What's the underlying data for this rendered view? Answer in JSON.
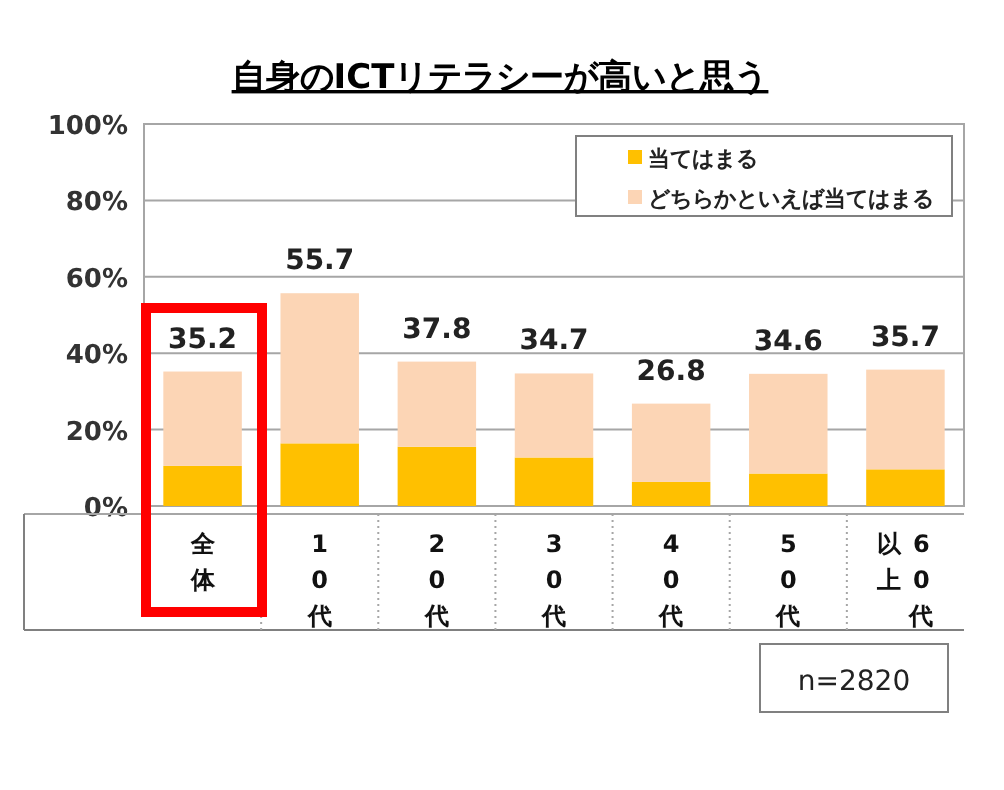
{
  "chart_data": {
    "type": "bar",
    "title": "自身のICTリテラシーが高いと思う",
    "categories": [
      "全体",
      "10代",
      "20代",
      "30代",
      "40代",
      "50代",
      "60代以上"
    ],
    "series": [
      {
        "name": "当てはまる",
        "color": "#ffc000",
        "values": [
          10.5,
          16.4,
          15.5,
          12.7,
          6.3,
          8.5,
          9.6
        ]
      },
      {
        "name": "どちらかといえば当てはまる",
        "color": "#fcd5b5",
        "values": [
          24.7,
          39.3,
          22.3,
          22.0,
          20.5,
          26.1,
          26.1
        ]
      }
    ],
    "stacked": true,
    "totals": [
      "35.2",
      "55.7",
      "37.8",
      "34.7",
      "26.8",
      "34.6",
      "35.7"
    ],
    "ylim": [
      0,
      100
    ],
    "yticks": [
      {
        "value": 0,
        "label": "0%"
      },
      {
        "value": 20,
        "label": "20%"
      },
      {
        "value": 40,
        "label": "40%"
      },
      {
        "value": 60,
        "label": "60%"
      },
      {
        "value": 80,
        "label": "80%"
      },
      {
        "value": 100,
        "label": "100%"
      }
    ],
    "grid": "y",
    "legend": "top right",
    "annotations": [
      "n=2820"
    ]
  }
}
